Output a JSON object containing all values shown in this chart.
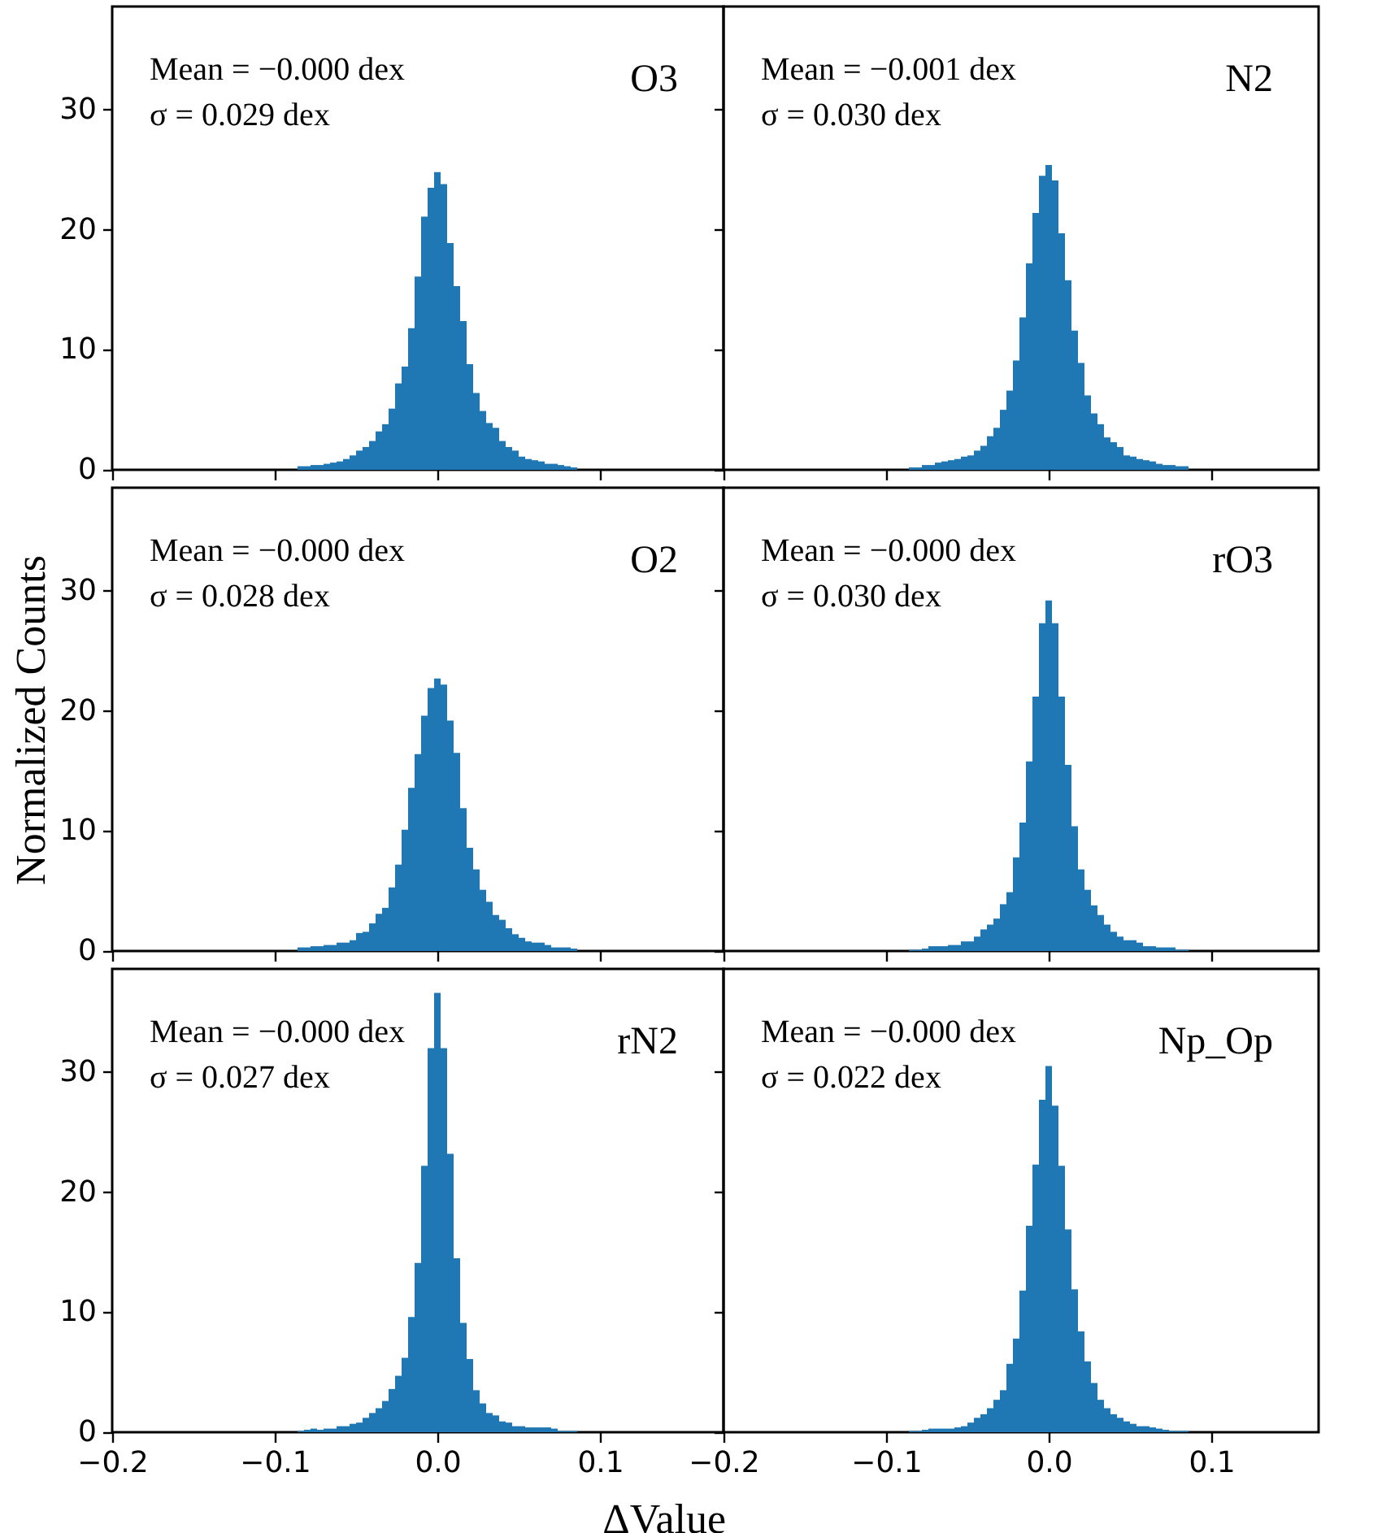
{
  "chart_data": [
    {
      "type": "histogram",
      "color": "#1f77b4",
      "annotations": [
        "Mean = −0.000 dex",
        "σ = 0.029 dex",
        "O3"
      ],
      "tick_labels": "y",
      "xlim": [
        -0.2,
        0.176
      ],
      "ylim": [
        0,
        38.6
      ],
      "xticks": [
        {
          "value": -0.2,
          "label": null
        },
        {
          "value": -0.1,
          "label": null
        },
        {
          "value": 0.0,
          "label": null
        },
        {
          "value": 0.1,
          "label": null
        }
      ],
      "yticks": [
        0,
        10,
        20,
        30
      ],
      "bins": [
        -0.086,
        -0.082,
        -0.078,
        -0.074,
        -0.07,
        -0.066,
        -0.062,
        -0.058,
        -0.054,
        -0.05,
        -0.046,
        -0.042,
        -0.038,
        -0.034,
        -0.03,
        -0.026,
        -0.022,
        -0.018,
        -0.014,
        -0.01,
        -0.006,
        -0.002,
        0.002,
        0.006,
        0.01,
        0.014,
        0.018,
        0.022,
        0.026,
        0.03,
        0.034,
        0.038,
        0.042,
        0.046,
        0.05,
        0.054,
        0.058,
        0.062,
        0.066,
        0.07,
        0.074,
        0.078,
        0.082,
        0.086
      ],
      "values": [
        0.3,
        0.3,
        0.4,
        0.4,
        0.5,
        0.6,
        0.7,
        0.9,
        1.2,
        1.6,
        1.9,
        2.4,
        3.2,
        3.8,
        5.1,
        7.2,
        8.6,
        11.8,
        16.1,
        21.1,
        23.5,
        24.8,
        23.8,
        18.9,
        15.3,
        12.4,
        8.8,
        6.4,
        4.9,
        3.9,
        3.5,
        2.4,
        1.9,
        1.6,
        1.1,
        0.9,
        0.8,
        0.7,
        0.5,
        0.5,
        0.4,
        0.3,
        0.2
      ]
    },
    {
      "type": "histogram",
      "color": "#1f77b4",
      "annotations": [
        "Mean = −0.001 dex",
        "σ = 0.030 dex",
        "N2"
      ],
      "tick_labels": false,
      "xlim": [
        -0.2,
        0.166
      ],
      "ylim": [
        0,
        38.6
      ],
      "xticks": [
        {
          "value": -0.2,
          "label": null
        },
        {
          "value": -0.1,
          "label": null
        },
        {
          "value": 0.0,
          "label": null
        },
        {
          "value": 0.1,
          "label": null
        }
      ],
      "yticks": [
        {
          "value": 0,
          "label": null
        },
        {
          "value": 10,
          "label": null
        },
        {
          "value": 20,
          "label": null
        },
        {
          "value": 30,
          "label": null
        }
      ],
      "bins": [
        -0.086,
        -0.082,
        -0.078,
        -0.074,
        -0.07,
        -0.066,
        -0.062,
        -0.058,
        -0.054,
        -0.05,
        -0.046,
        -0.042,
        -0.038,
        -0.034,
        -0.03,
        -0.026,
        -0.022,
        -0.018,
        -0.014,
        -0.01,
        -0.006,
        -0.002,
        0.002,
        0.006,
        0.01,
        0.014,
        0.018,
        0.022,
        0.026,
        0.03,
        0.034,
        0.038,
        0.042,
        0.046,
        0.05,
        0.054,
        0.058,
        0.062,
        0.066,
        0.07,
        0.074,
        0.078,
        0.082,
        0.086
      ],
      "values": [
        0.2,
        0.2,
        0.4,
        0.4,
        0.6,
        0.7,
        0.8,
        0.9,
        1.1,
        1.2,
        1.6,
        2.0,
        2.8,
        3.5,
        5.0,
        6.6,
        9.1,
        12.7,
        17.2,
        21.4,
        24.5,
        25.4,
        24.1,
        19.7,
        15.8,
        11.6,
        8.9,
        6.2,
        4.7,
        3.8,
        2.7,
        2.3,
        1.9,
        1.2,
        1.1,
        0.9,
        0.8,
        0.7,
        0.5,
        0.4,
        0.4,
        0.3,
        0.3
      ]
    },
    {
      "type": "histogram",
      "color": "#1f77b4",
      "annotations": [
        "Mean = −0.000 dex",
        "σ = 0.028 dex",
        "O2"
      ],
      "tick_labels": "y",
      "ylabel": "Normalized Counts",
      "xlim": [
        -0.2,
        0.176
      ],
      "ylim": [
        0,
        38.6
      ],
      "xticks": [
        {
          "value": -0.2,
          "label": null
        },
        {
          "value": -0.1,
          "label": null
        },
        {
          "value": 0.0,
          "label": null
        },
        {
          "value": 0.1,
          "label": null
        }
      ],
      "yticks": [
        0,
        10,
        20,
        30
      ],
      "bins": [
        -0.086,
        -0.082,
        -0.078,
        -0.074,
        -0.07,
        -0.066,
        -0.062,
        -0.058,
        -0.054,
        -0.05,
        -0.046,
        -0.042,
        -0.038,
        -0.034,
        -0.03,
        -0.026,
        -0.022,
        -0.018,
        -0.014,
        -0.01,
        -0.006,
        -0.002,
        0.002,
        0.006,
        0.01,
        0.014,
        0.018,
        0.022,
        0.026,
        0.03,
        0.034,
        0.038,
        0.042,
        0.046,
        0.05,
        0.054,
        0.058,
        0.062,
        0.066,
        0.07,
        0.074,
        0.078,
        0.082,
        0.086
      ],
      "values": [
        0.3,
        0.3,
        0.4,
        0.4,
        0.5,
        0.5,
        0.7,
        0.7,
        0.9,
        1.5,
        1.6,
        2.3,
        3.1,
        3.6,
        5.3,
        7.2,
        10.1,
        13.6,
        16.4,
        19.6,
        21.9,
        22.7,
        22.2,
        19.2,
        16.5,
        11.9,
        8.6,
        6.8,
        5.1,
        4.1,
        3.0,
        2.6,
        1.9,
        1.4,
        1.1,
        0.8,
        0.7,
        0.7,
        0.5,
        0.3,
        0.3,
        0.3,
        0.2
      ]
    },
    {
      "type": "histogram",
      "color": "#1f77b4",
      "annotations": [
        "Mean = −0.000 dex",
        "σ = 0.030 dex",
        "rO3"
      ],
      "tick_labels": false,
      "xlim": [
        -0.2,
        0.166
      ],
      "ylim": [
        0,
        38.6
      ],
      "xticks": [
        {
          "value": -0.2,
          "label": null
        },
        {
          "value": -0.1,
          "label": null
        },
        {
          "value": 0.0,
          "label": null
        },
        {
          "value": 0.1,
          "label": null
        }
      ],
      "yticks": [
        {
          "value": 0,
          "label": null
        },
        {
          "value": 10,
          "label": null
        },
        {
          "value": 20,
          "label": null
        },
        {
          "value": 30,
          "label": null
        }
      ],
      "bins": [
        -0.086,
        -0.082,
        -0.078,
        -0.074,
        -0.07,
        -0.066,
        -0.062,
        -0.058,
        -0.054,
        -0.05,
        -0.046,
        -0.042,
        -0.038,
        -0.034,
        -0.03,
        -0.026,
        -0.022,
        -0.018,
        -0.014,
        -0.01,
        -0.006,
        -0.002,
        0.002,
        0.006,
        0.01,
        0.014,
        0.018,
        0.022,
        0.026,
        0.03,
        0.034,
        0.038,
        0.042,
        0.046,
        0.05,
        0.054,
        0.058,
        0.062,
        0.066,
        0.07,
        0.074,
        0.078,
        0.082,
        0.086
      ],
      "values": [
        0.1,
        0.1,
        0.2,
        0.4,
        0.4,
        0.4,
        0.5,
        0.5,
        0.8,
        0.8,
        1.2,
        1.8,
        2.2,
        2.7,
        3.9,
        4.9,
        7.8,
        10.7,
        15.8,
        21.2,
        27.3,
        29.2,
        27.3,
        21.2,
        15.5,
        10.4,
        6.8,
        5.1,
        3.8,
        3.0,
        2.2,
        1.6,
        1.2,
        0.9,
        0.9,
        0.7,
        0.4,
        0.4,
        0.3,
        0.3,
        0.3,
        0.1,
        0.1
      ]
    },
    {
      "type": "histogram",
      "color": "#1f77b4",
      "annotations": [
        "Mean = −0.000 dex",
        "σ = 0.027 dex",
        "rN2"
      ],
      "xlabel": "ΔValue",
      "xlim": [
        -0.2,
        0.176
      ],
      "ylim": [
        0,
        38.6
      ],
      "xticks": [
        {
          "value": -0.2,
          "label": "−0.2"
        },
        {
          "value": -0.1,
          "label": "−0.1"
        },
        {
          "value": 0.0,
          "label": "0.0"
        },
        0.1
      ],
      "yticks": [
        0,
        10,
        20,
        30
      ],
      "bins": [
        -0.086,
        -0.082,
        -0.078,
        -0.074,
        -0.07,
        -0.066,
        -0.062,
        -0.058,
        -0.054,
        -0.05,
        -0.046,
        -0.042,
        -0.038,
        -0.034,
        -0.03,
        -0.026,
        -0.022,
        -0.018,
        -0.014,
        -0.01,
        -0.006,
        -0.002,
        0.002,
        0.006,
        0.01,
        0.014,
        0.018,
        0.022,
        0.026,
        0.03,
        0.034,
        0.038,
        0.042,
        0.046,
        0.05,
        0.054,
        0.058,
        0.062,
        0.066,
        0.07,
        0.074,
        0.078,
        0.082,
        0.086
      ],
      "values": [
        0.1,
        0.2,
        0.3,
        0.2,
        0.3,
        0.3,
        0.5,
        0.5,
        0.7,
        0.8,
        1.2,
        1.6,
        2.0,
        2.6,
        3.6,
        4.7,
        6.2,
        9.6,
        14.1,
        22.2,
        32.0,
        36.6,
        32.0,
        23.2,
        14.5,
        9.1,
        6.1,
        3.5,
        2.4,
        1.6,
        1.4,
        0.9,
        0.8,
        0.5,
        0.5,
        0.4,
        0.4,
        0.4,
        0.4,
        0.3,
        0.1,
        0.1,
        0.1
      ]
    },
    {
      "type": "histogram",
      "color": "#1f77b4",
      "annotations": [
        "Mean = −0.000 dex",
        "σ = 0.022 dex",
        "Np_Op"
      ],
      "tick_labels": "x",
      "xlim": [
        -0.2,
        0.166
      ],
      "ylim": [
        0,
        38.6
      ],
      "xticks": [
        {
          "value": -0.2,
          "label": "−0.2"
        },
        {
          "value": -0.1,
          "label": "−0.1"
        },
        {
          "value": 0.0,
          "label": "0.0"
        },
        0.1
      ],
      "yticks": [
        {
          "value": 0,
          "label": null
        },
        {
          "value": 10,
          "label": null
        },
        {
          "value": 20,
          "label": null
        },
        {
          "value": 30,
          "label": null
        }
      ],
      "bins": [
        -0.086,
        -0.082,
        -0.078,
        -0.074,
        -0.07,
        -0.066,
        -0.062,
        -0.058,
        -0.054,
        -0.05,
        -0.046,
        -0.042,
        -0.038,
        -0.034,
        -0.03,
        -0.026,
        -0.022,
        -0.018,
        -0.014,
        -0.01,
        -0.006,
        -0.002,
        0.002,
        0.006,
        0.01,
        0.014,
        0.018,
        0.022,
        0.026,
        0.03,
        0.034,
        0.038,
        0.042,
        0.046,
        0.05,
        0.054,
        0.058,
        0.062,
        0.066,
        0.07,
        0.074,
        0.078,
        0.082,
        0.086
      ],
      "values": [
        0.1,
        0.1,
        0.2,
        0.3,
        0.3,
        0.3,
        0.3,
        0.4,
        0.5,
        0.8,
        1.2,
        1.5,
        2.0,
        2.7,
        3.5,
        5.7,
        7.8,
        11.8,
        17.2,
        22.3,
        27.7,
        30.5,
        27.2,
        22.2,
        16.9,
        11.9,
        8.4,
        5.9,
        4.1,
        2.7,
        2.0,
        1.5,
        1.2,
        0.9,
        0.7,
        0.5,
        0.5,
        0.4,
        0.3,
        0.2,
        0.1,
        0.1,
        0.1
      ]
    }
  ]
}
